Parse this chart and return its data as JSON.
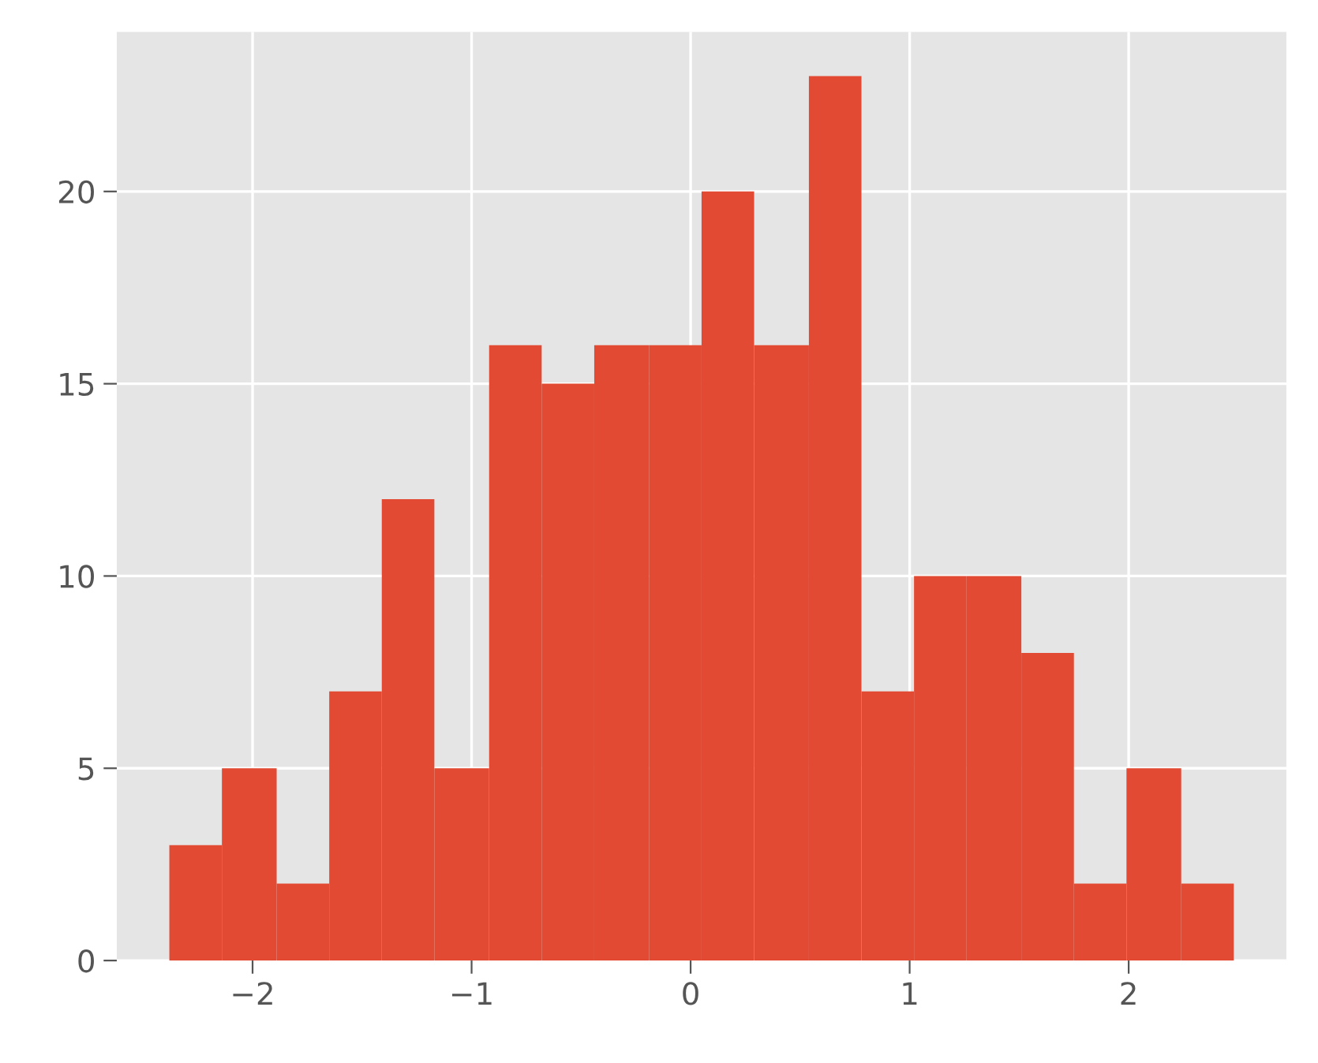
{
  "chart_data": {
    "type": "histogram",
    "bins": [
      -2.38,
      -2.14,
      -1.89,
      -1.65,
      -1.41,
      -1.17,
      -0.92,
      -0.68,
      -0.44,
      -0.19,
      0.05,
      0.29,
      0.54,
      0.78,
      1.02,
      1.26,
      1.51,
      1.75,
      1.99,
      2.24,
      2.48
    ],
    "values": [
      3,
      5,
      2,
      7,
      12,
      5,
      16,
      15,
      16,
      16,
      20,
      16,
      23,
      7,
      10,
      10,
      8,
      2,
      5,
      2
    ],
    "color": "#e24a33",
    "xlim": [
      -2.62,
      2.72
    ],
    "ylim": [
      0,
      24.15
    ],
    "xticks": [
      {
        "value": -2,
        "label": "−2"
      },
      {
        "value": -1,
        "label": "−1"
      },
      0,
      1,
      2
    ],
    "yticks": [
      0,
      5,
      10,
      15,
      20
    ],
    "grid": true
  }
}
